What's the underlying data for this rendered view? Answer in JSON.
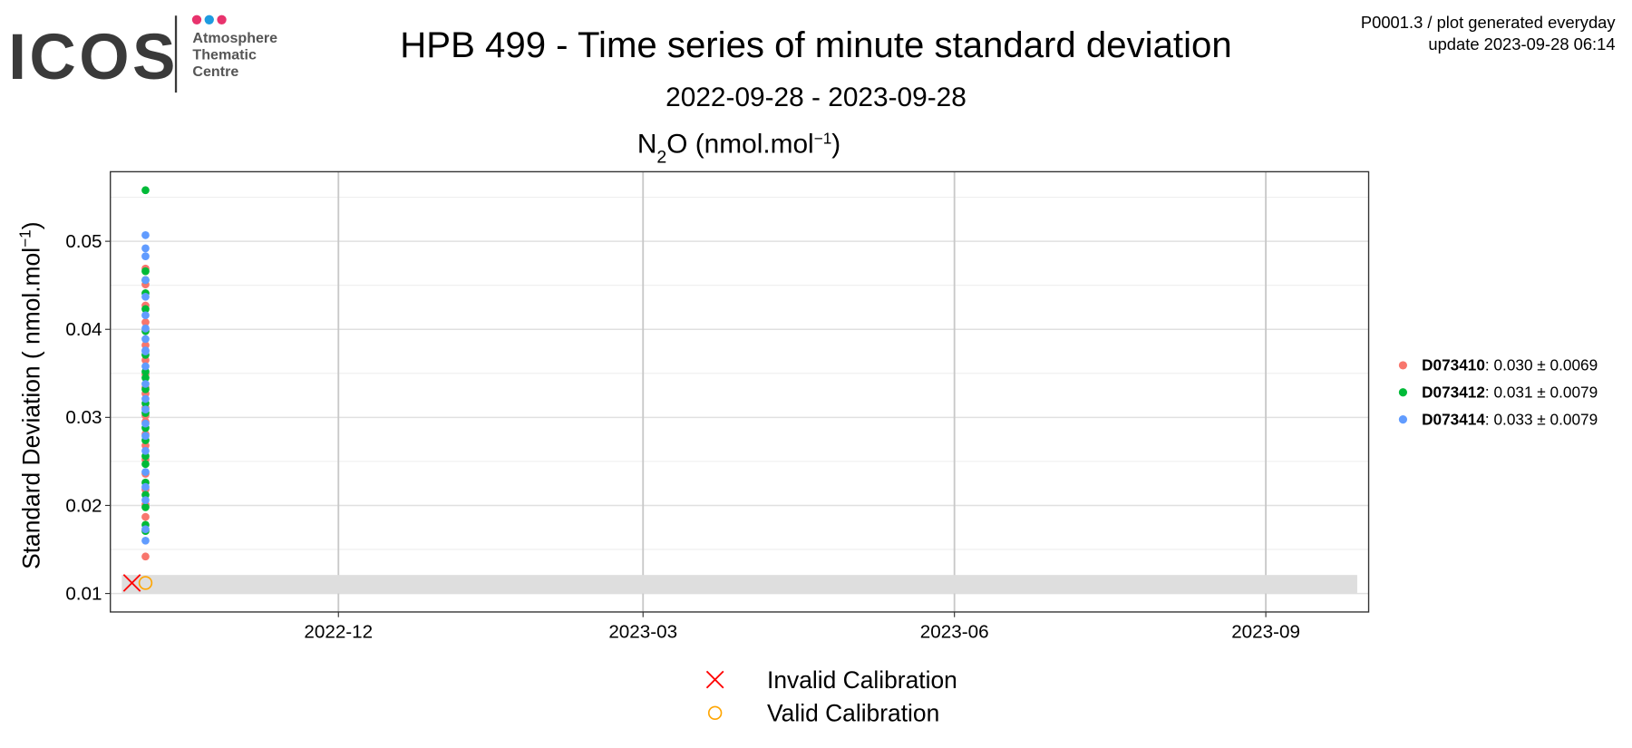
{
  "logo": {
    "acronym": "ICOS",
    "lines": [
      "Atmosphere",
      "Thematic",
      "Centre"
    ]
  },
  "header_note": [
    "P0001.3 / plot generated everyday",
    "update  2023-09-28 06:14"
  ],
  "chart_data": {
    "type": "scatter",
    "title": "HPB 499 - Time series of minute standard deviation",
    "subtitle": "2022-09-28 - 2023-09-28",
    "panel_title": [
      {
        "text": "N"
      },
      {
        "text": "2",
        "shift": "sub"
      },
      {
        "text": "O (nmol.mol"
      },
      {
        "text": "−1",
        "shift": "super"
      },
      {
        "text": ")"
      }
    ],
    "y_label": [
      {
        "text": "Standard Deviation ( nmol.mol"
      },
      {
        "text": "−1",
        "shift": "super"
      },
      {
        "text": ")"
      }
    ],
    "xlim": [
      "2022-09-28",
      "2023-09-28"
    ],
    "xticks": [
      "2022-12",
      "2023-03",
      "2023-06",
      "2023-09"
    ],
    "ylim": [
      0.0079,
      0.0579
    ],
    "yticks": [
      0.01,
      0.02,
      0.03,
      0.04,
      0.05
    ],
    "yminor": [
      0.015,
      0.025,
      0.035,
      0.045,
      0.055
    ],
    "grid": true,
    "legend": "right",
    "shaded_range": {
      "y": [
        0.01,
        0.0121
      ],
      "color": "#dedede"
    },
    "series": [
      {
        "name": "D073410",
        "summary": ": 0.030 ± 0.0069",
        "color": "#F8766D",
        "x": [
          "2022-10-05",
          "2022-10-05",
          "2022-10-05",
          "2022-10-05",
          "2022-10-05",
          "2022-10-05",
          "2022-10-05",
          "2022-10-05",
          "2022-10-05",
          "2022-10-05",
          "2022-10-05",
          "2022-10-05",
          "2022-10-05",
          "2022-10-05",
          "2022-10-05",
          "2022-10-05",
          "2022-10-05",
          "2022-10-05",
          "2022-10-05",
          "2022-10-05"
        ],
        "values": [
          0.0142,
          0.0187,
          0.0201,
          0.0218,
          0.0236,
          0.0252,
          0.0268,
          0.0281,
          0.0295,
          0.0302,
          0.0311,
          0.0327,
          0.0334,
          0.0349,
          0.0365,
          0.0382,
          0.0408,
          0.0427,
          0.0451,
          0.0469
        ]
      },
      {
        "name": "D073412",
        "summary": ": 0.031 ± 0.0079",
        "color": "#00BA38",
        "x": [
          "2022-10-05",
          "2022-10-05",
          "2022-10-05",
          "2022-10-05",
          "2022-10-05",
          "2022-10-05",
          "2022-10-05",
          "2022-10-05",
          "2022-10-05",
          "2022-10-05",
          "2022-10-05",
          "2022-10-05",
          "2022-10-05",
          "2022-10-05",
          "2022-10-05",
          "2022-10-05",
          "2022-10-05",
          "2022-10-05",
          "2022-10-05",
          "2022-10-05",
          "2022-10-05"
        ],
        "values": [
          0.0171,
          0.0178,
          0.0198,
          0.0212,
          0.0226,
          0.0247,
          0.0256,
          0.0274,
          0.0288,
          0.0305,
          0.0316,
          0.0332,
          0.0345,
          0.0352,
          0.0371,
          0.0398,
          0.0423,
          0.0441,
          0.0456,
          0.0466,
          0.0558
        ]
      },
      {
        "name": "D073414",
        "summary": ": 0.033 ± 0.0079",
        "color": "#619CFF",
        "x": [
          "2022-10-05",
          "2022-10-05",
          "2022-10-05",
          "2022-10-05",
          "2022-10-05",
          "2022-10-05",
          "2022-10-05",
          "2022-10-05",
          "2022-10-05",
          "2022-10-05",
          "2022-10-05",
          "2022-10-05",
          "2022-10-05",
          "2022-10-05",
          "2022-10-05",
          "2022-10-05",
          "2022-10-05",
          "2022-10-05",
          "2022-10-05",
          "2022-10-05",
          "2022-10-05",
          "2022-10-05"
        ],
        "values": [
          0.016,
          0.0173,
          0.0206,
          0.0221,
          0.0238,
          0.0262,
          0.0279,
          0.0293,
          0.0309,
          0.0321,
          0.0338,
          0.0358,
          0.0376,
          0.0389,
          0.0401,
          0.0416,
          0.0437,
          0.0456,
          0.0483,
          0.0492,
          0.0507,
          0.0375
        ]
      }
    ],
    "calibrations": [
      {
        "name": "Invalid Calibration",
        "x": "2022-10-01",
        "y": 0.0112,
        "color": "#ff0000",
        "shape": "cross"
      },
      {
        "name": "Valid Calibration",
        "x": "2022-10-05",
        "y": 0.0112,
        "color": "#ffa500",
        "shape": "circle"
      }
    ]
  }
}
